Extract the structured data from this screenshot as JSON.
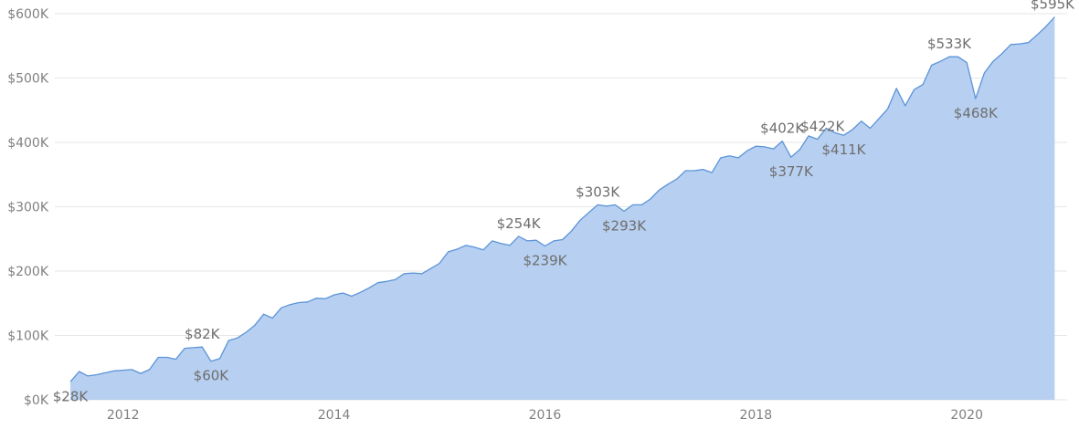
{
  "chart_data": {
    "type": "area",
    "title": "",
    "xlabel": "",
    "ylabel": "",
    "ylim": [
      0,
      600000
    ],
    "xlim": [
      "2011-07",
      "2020-12"
    ],
    "grid": true,
    "colors": {
      "fill": "#b7cff0",
      "line": "#5b94d8"
    },
    "y_ticks": [
      {
        "value": 0,
        "label": "$0K"
      },
      {
        "value": 100000,
        "label": "$100K"
      },
      {
        "value": 200000,
        "label": "$200K"
      },
      {
        "value": 300000,
        "label": "$300K"
      },
      {
        "value": 400000,
        "label": "$400K"
      },
      {
        "value": 500000,
        "label": "$500K"
      },
      {
        "value": 600000,
        "label": "$600K"
      }
    ],
    "x_ticks": [
      {
        "date": "2012-01",
        "label": "2012"
      },
      {
        "date": "2014-01",
        "label": "2014"
      },
      {
        "date": "2016-01",
        "label": "2016"
      },
      {
        "date": "2018-01",
        "label": "2018"
      },
      {
        "date": "2020-01",
        "label": "2020"
      }
    ],
    "series": [
      {
        "points": [
          [
            "2011-07",
            28000
          ],
          [
            "2011-08",
            44000
          ],
          [
            "2011-09",
            37000
          ],
          [
            "2011-10",
            39000
          ],
          [
            "2011-11",
            42000
          ],
          [
            "2011-12",
            45000
          ],
          [
            "2012-01",
            46000
          ],
          [
            "2012-02",
            47000
          ],
          [
            "2012-03",
            41000
          ],
          [
            "2012-04",
            47000
          ],
          [
            "2012-05",
            66000
          ],
          [
            "2012-06",
            66000
          ],
          [
            "2012-07",
            63000
          ],
          [
            "2012-08",
            80000
          ],
          [
            "2012-09",
            81000
          ],
          [
            "2012-10",
            82000
          ],
          [
            "2012-11",
            60000
          ],
          [
            "2012-12",
            64000
          ],
          [
            "2013-01",
            92000
          ],
          [
            "2013-02",
            96000
          ],
          [
            "2013-03",
            105000
          ],
          [
            "2013-04",
            116000
          ],
          [
            "2013-05",
            133000
          ],
          [
            "2013-06",
            127000
          ],
          [
            "2013-07",
            143000
          ],
          [
            "2013-08",
            148000
          ],
          [
            "2013-09",
            151000
          ],
          [
            "2013-10",
            152000
          ],
          [
            "2013-11",
            158000
          ],
          [
            "2013-12",
            157000
          ],
          [
            "2014-01",
            163000
          ],
          [
            "2014-02",
            166000
          ],
          [
            "2014-03",
            161000
          ],
          [
            "2014-04",
            167000
          ],
          [
            "2014-05",
            174000
          ],
          [
            "2014-06",
            182000
          ],
          [
            "2014-07",
            184000
          ],
          [
            "2014-08",
            187000
          ],
          [
            "2014-09",
            196000
          ],
          [
            "2014-10",
            197000
          ],
          [
            "2014-11",
            196000
          ],
          [
            "2014-12",
            204000
          ],
          [
            "2015-01",
            212000
          ],
          [
            "2015-02",
            230000
          ],
          [
            "2015-03",
            234000
          ],
          [
            "2015-04",
            240000
          ],
          [
            "2015-05",
            237000
          ],
          [
            "2015-06",
            233000
          ],
          [
            "2015-07",
            247000
          ],
          [
            "2015-08",
            243000
          ],
          [
            "2015-09",
            240000
          ],
          [
            "2015-10",
            254000
          ],
          [
            "2015-11",
            247000
          ],
          [
            "2015-12",
            248000
          ],
          [
            "2016-01",
            239000
          ],
          [
            "2016-02",
            247000
          ],
          [
            "2016-03",
            249000
          ],
          [
            "2016-04",
            262000
          ],
          [
            "2016-05",
            279000
          ],
          [
            "2016-06",
            291000
          ],
          [
            "2016-07",
            303000
          ],
          [
            "2016-08",
            301000
          ],
          [
            "2016-09",
            303000
          ],
          [
            "2016-10",
            293000
          ],
          [
            "2016-11",
            303000
          ],
          [
            "2016-12",
            303000
          ],
          [
            "2017-01",
            312000
          ],
          [
            "2017-02",
            326000
          ],
          [
            "2017-03",
            335000
          ],
          [
            "2017-04",
            343000
          ],
          [
            "2017-05",
            356000
          ],
          [
            "2017-06",
            356000
          ],
          [
            "2017-07",
            358000
          ],
          [
            "2017-08",
            353000
          ],
          [
            "2017-09",
            376000
          ],
          [
            "2017-10",
            379000
          ],
          [
            "2017-11",
            376000
          ],
          [
            "2017-12",
            387000
          ],
          [
            "2018-01",
            394000
          ],
          [
            "2018-02",
            393000
          ],
          [
            "2018-03",
            390000
          ],
          [
            "2018-04",
            402000
          ],
          [
            "2018-05",
            377000
          ],
          [
            "2018-06",
            389000
          ],
          [
            "2018-07",
            410000
          ],
          [
            "2018-08",
            405000
          ],
          [
            "2018-09",
            422000
          ],
          [
            "2018-10",
            415000
          ],
          [
            "2018-11",
            411000
          ],
          [
            "2018-12",
            420000
          ],
          [
            "2019-01",
            433000
          ],
          [
            "2019-02",
            422000
          ],
          [
            "2019-03",
            437000
          ],
          [
            "2019-04",
            452000
          ],
          [
            "2019-05",
            484000
          ],
          [
            "2019-06",
            457000
          ],
          [
            "2019-07",
            482000
          ],
          [
            "2019-08",
            490000
          ],
          [
            "2019-09",
            520000
          ],
          [
            "2019-10",
            526000
          ],
          [
            "2019-11",
            533000
          ],
          [
            "2019-12",
            533000
          ],
          [
            "2020-01",
            524000
          ],
          [
            "2020-02",
            468000
          ],
          [
            "2020-03",
            508000
          ],
          [
            "2020-04",
            526000
          ],
          [
            "2020-05",
            538000
          ],
          [
            "2020-06",
            552000
          ],
          [
            "2020-07",
            553000
          ],
          [
            "2020-08",
            555000
          ],
          [
            "2020-09",
            567000
          ],
          [
            "2020-10",
            580000
          ],
          [
            "2020-11",
            595000
          ]
        ]
      }
    ],
    "data_labels": [
      {
        "date": "2011-07",
        "value": 28000,
        "label": "$28K",
        "position": "below"
      },
      {
        "date": "2012-10",
        "value": 82000,
        "label": "$82K",
        "position": "above"
      },
      {
        "date": "2012-11",
        "value": 60000,
        "label": "$60K",
        "position": "below"
      },
      {
        "date": "2015-10",
        "value": 254000,
        "label": "$254K",
        "position": "above"
      },
      {
        "date": "2016-01",
        "value": 239000,
        "label": "$239K",
        "position": "below"
      },
      {
        "date": "2016-07",
        "value": 303000,
        "label": "$303K",
        "position": "above"
      },
      {
        "date": "2016-10",
        "value": 293000,
        "label": "$293K",
        "position": "below"
      },
      {
        "date": "2018-04",
        "value": 402000,
        "label": "$402K",
        "position": "above"
      },
      {
        "date": "2018-05",
        "value": 377000,
        "label": "$377K",
        "position": "below"
      },
      {
        "date": "2018-09",
        "value": 422000,
        "label": "$422K",
        "position": "right"
      },
      {
        "date": "2018-11",
        "value": 411000,
        "label": "$411K",
        "position": "below"
      },
      {
        "date": "2019-11",
        "value": 533000,
        "label": "$533K",
        "position": "above"
      },
      {
        "date": "2020-02",
        "value": 468000,
        "label": "$468K",
        "position": "below"
      },
      {
        "date": "2020-11",
        "value": 595000,
        "label": "$595K",
        "position": "above"
      }
    ]
  }
}
